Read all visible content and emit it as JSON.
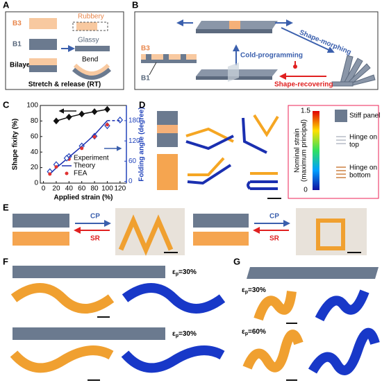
{
  "panels": {
    "a": {
      "label": "A",
      "b3": "B3",
      "rubbery": "Rubbery",
      "b1": "B1",
      "glassy": "Glassy",
      "bilayer": "Bilayer",
      "bend": "Bend",
      "caption": "Stretch & release (RT)"
    },
    "b": {
      "label": "B",
      "b3": "B3",
      "b1": "B1",
      "cold": "Cold-programming",
      "morph": "Shape-morphing",
      "recover": "Shape-recovering"
    },
    "c": {
      "label": "C"
    },
    "d": {
      "label": "D",
      "stiff": "Stiff panel",
      "strain": "Nominal strain",
      "strain2": "(maximum principal)",
      "cmax": "1.5",
      "cmin": "0",
      "top": "Hinge on",
      "top2": "top",
      "bottom": "Hinge on",
      "bottom2": "bottom"
    },
    "e": {
      "label": "E",
      "cp1": "CP",
      "sr1": "SR",
      "cp2": "CP",
      "sr2": "SR"
    },
    "f": {
      "label": "F",
      "eps1": {
        "symbol": "ε",
        "sub": "p",
        "rest": "=30%"
      },
      "eps2": {
        "symbol": "ε",
        "sub": "p",
        "rest": "=30%"
      }
    },
    "g": {
      "label": "G",
      "eps1": {
        "symbol": "ε",
        "sub": "p",
        "rest": "=30%"
      },
      "eps2": {
        "symbol": "ε",
        "sub": "p",
        "rest": "=60%"
      }
    }
  },
  "chart_data": {
    "type": "line",
    "xlabel": "Applied strain (%)",
    "ylabel": "Shape fixity (%)",
    "y2label": "Folding angle (degree)",
    "xlim": [
      -5,
      130
    ],
    "xticks": [
      0,
      20,
      40,
      60,
      80,
      100,
      120
    ],
    "ylim": [
      0,
      100
    ],
    "yticks": [
      0,
      20,
      40,
      60,
      80,
      100
    ],
    "y2lim": [
      -5,
      225
    ],
    "y2ticks": [
      0,
      60,
      120,
      180
    ],
    "series": [
      {
        "color": "#111111",
        "marker": "diamond",
        "line": "solid",
        "x": [
          20,
          40,
          60,
          80,
          100
        ],
        "values": [
          80,
          85,
          89,
          92,
          95
        ]
      },
      {
        "name": "Experiment",
        "axis": "y2",
        "color": "#2244bb",
        "marker": "open-diamond",
        "x": [
          10,
          20,
          40,
          60,
          80,
          100,
          120
        ],
        "values": [
          29,
          50,
          74,
          105,
          134,
          165,
          182
        ],
        "errors": [
          8,
          6,
          8,
          8,
          8,
          10,
          6
        ]
      },
      {
        "name": "Theory",
        "axis": "y2",
        "color": "#1a2fb0",
        "line": "solid",
        "x": [
          10,
          20,
          40,
          60,
          80,
          100
        ],
        "values": [
          22,
          40,
          72,
          104,
          138,
          180
        ]
      },
      {
        "axis": "y2",
        "color": "#1a2fb0",
        "line": "dashed",
        "x": [
          100,
          120
        ],
        "values": [
          180,
          180
        ]
      },
      {
        "name": "FEA",
        "axis": "y2",
        "color": "#e03333",
        "marker": "dot",
        "x": [
          10,
          20,
          40,
          60,
          80,
          100
        ],
        "values": [
          22,
          43,
          66,
          98,
          132,
          168
        ]
      }
    ]
  }
}
